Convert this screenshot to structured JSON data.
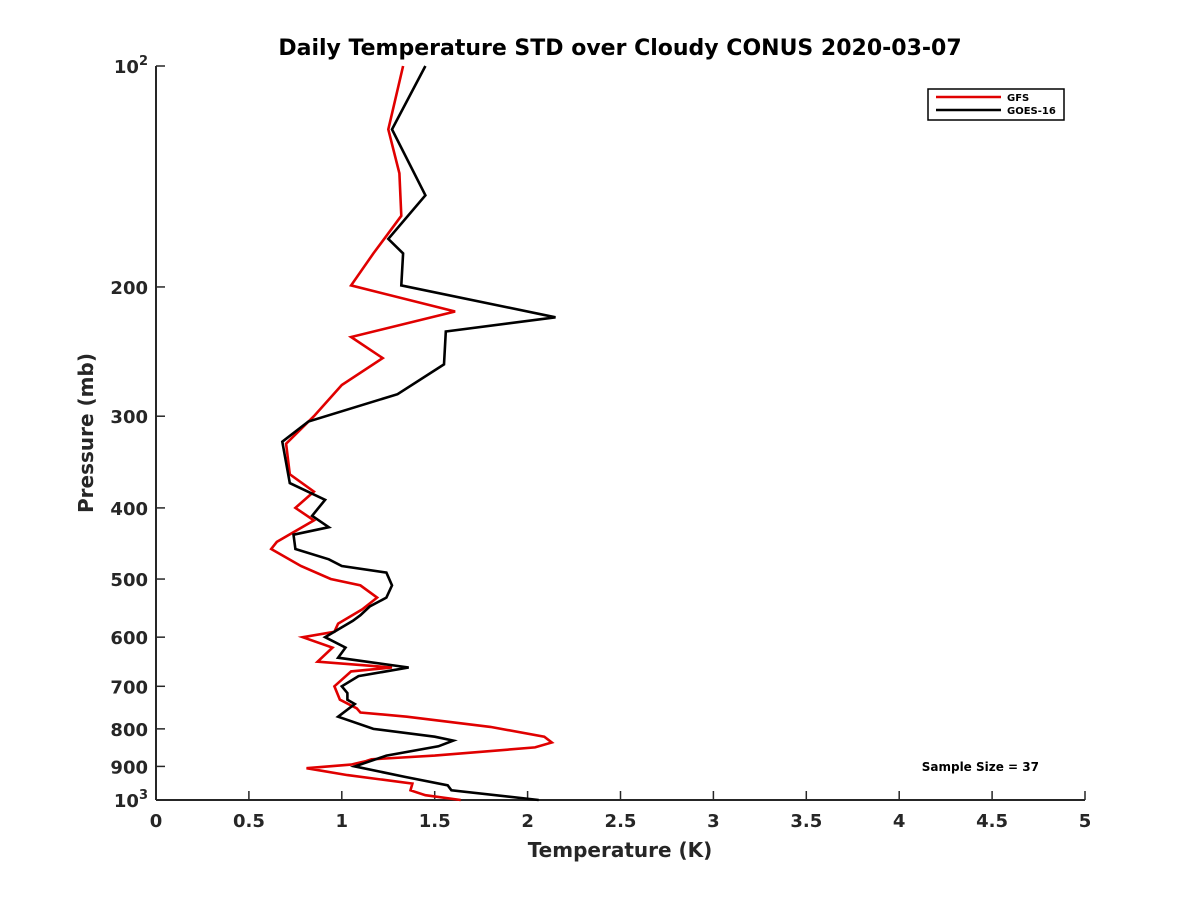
{
  "chart_data": {
    "type": "line",
    "title": "Daily Temperature STD over Cloudy CONUS 2020-03-07",
    "xlabel": "Temperature (K)",
    "ylabel": "Pressure (mb)",
    "xlim": [
      0,
      5
    ],
    "ylim": [
      100,
      1000
    ],
    "y_scale": "log",
    "y_reversed": true,
    "x_ticks": [
      "0",
      "0.5",
      "1",
      "1.5",
      "2",
      "2.5",
      "3",
      "3.5",
      "4",
      "4.5",
      "5"
    ],
    "y_ticks": [
      {
        "value": 100,
        "base": "10",
        "exp": "2"
      },
      {
        "value": 200,
        "label": "200"
      },
      {
        "value": 300,
        "label": "300"
      },
      {
        "value": 400,
        "label": "400"
      },
      {
        "value": 500,
        "label": "500"
      },
      {
        "value": 600,
        "label": "600"
      },
      {
        "value": 700,
        "label": "700"
      },
      {
        "value": 800,
        "label": "800"
      },
      {
        "value": 900,
        "label": "900"
      },
      {
        "value": 1000,
        "base": "10",
        "exp": "3"
      }
    ],
    "grid": false,
    "legend_position": "top-right",
    "annotation": "Sample Size = 37",
    "series": [
      {
        "name": "GFS",
        "color": "#e00000",
        "points": [
          [
            1.33,
            100
          ],
          [
            1.25,
            122
          ],
          [
            1.31,
            140
          ],
          [
            1.32,
            160
          ],
          [
            1.17,
            180
          ],
          [
            1.05,
            199
          ],
          [
            1.61,
            216
          ],
          [
            1.05,
            234
          ],
          [
            1.22,
            250
          ],
          [
            1.0,
            272
          ],
          [
            0.85,
            300
          ],
          [
            0.7,
            327
          ],
          [
            0.72,
            360
          ],
          [
            0.85,
            380
          ],
          [
            0.75,
            400
          ],
          [
            0.85,
            416
          ],
          [
            0.65,
            445
          ],
          [
            0.62,
            455
          ],
          [
            0.78,
            480
          ],
          [
            0.94,
            500
          ],
          [
            1.1,
            510
          ],
          [
            1.19,
            530
          ],
          [
            1.11,
            550
          ],
          [
            0.98,
            575
          ],
          [
            0.96,
            590
          ],
          [
            0.79,
            600
          ],
          [
            0.95,
            620
          ],
          [
            0.87,
            648
          ],
          [
            1.27,
            660
          ],
          [
            1.05,
            668
          ],
          [
            0.96,
            700
          ],
          [
            0.99,
            730
          ],
          [
            1.08,
            750
          ],
          [
            1.1,
            760
          ],
          [
            1.35,
            770
          ],
          [
            1.8,
            795
          ],
          [
            2.09,
            820
          ],
          [
            2.13,
            835
          ],
          [
            2.04,
            848
          ],
          [
            1.5,
            870
          ],
          [
            1.16,
            880
          ],
          [
            1.13,
            885
          ],
          [
            1.05,
            895
          ],
          [
            0.81,
            905
          ],
          [
            1.03,
            925
          ],
          [
            1.38,
            950
          ],
          [
            1.37,
            970
          ],
          [
            1.45,
            985
          ],
          [
            1.64,
            1000
          ]
        ]
      },
      {
        "name": "GOES-16",
        "color": "#000000",
        "points": [
          [
            1.45,
            100
          ],
          [
            1.27,
            122
          ],
          [
            1.45,
            150
          ],
          [
            1.25,
            172
          ],
          [
            1.33,
            180
          ],
          [
            1.32,
            199
          ],
          [
            2.15,
            220
          ],
          [
            1.56,
            230
          ],
          [
            1.55,
            255
          ],
          [
            1.3,
            280
          ],
          [
            0.82,
            305
          ],
          [
            0.68,
            325
          ],
          [
            0.72,
            370
          ],
          [
            0.91,
            390
          ],
          [
            0.84,
            410
          ],
          [
            0.93,
            425
          ],
          [
            0.74,
            435
          ],
          [
            0.75,
            455
          ],
          [
            0.93,
            470
          ],
          [
            1.0,
            480
          ],
          [
            1.24,
            490
          ],
          [
            1.27,
            510
          ],
          [
            1.24,
            530
          ],
          [
            1.15,
            545
          ],
          [
            1.1,
            560
          ],
          [
            1.06,
            570
          ],
          [
            0.91,
            600
          ],
          [
            1.02,
            620
          ],
          [
            0.98,
            640
          ],
          [
            1.36,
            660
          ],
          [
            1.09,
            678
          ],
          [
            1.0,
            700
          ],
          [
            1.03,
            715
          ],
          [
            1.03,
            730
          ],
          [
            1.07,
            740
          ],
          [
            0.98,
            770
          ],
          [
            1.17,
            800
          ],
          [
            1.5,
            820
          ],
          [
            1.6,
            830
          ],
          [
            1.52,
            845
          ],
          [
            1.24,
            870
          ],
          [
            1.07,
            900
          ],
          [
            1.34,
            930
          ],
          [
            1.57,
            955
          ],
          [
            1.59,
            970
          ],
          [
            2.06,
            1000
          ]
        ]
      }
    ]
  }
}
